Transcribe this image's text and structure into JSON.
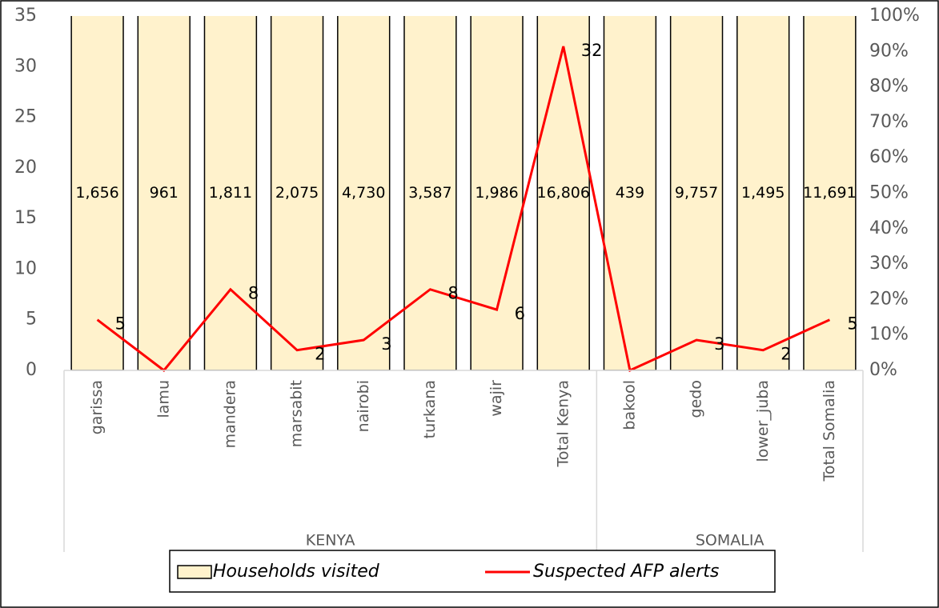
{
  "chart_data": {
    "type": "bar_line",
    "categories": [
      "garissa",
      "lamu",
      "mandera",
      "marsabit",
      "nairobi",
      "turkana",
      "wajir",
      "Total Kenya",
      "bakool",
      "gedo",
      "lower_juba",
      "Total Somalia"
    ],
    "groups": [
      {
        "label": "KENYA",
        "size": 8
      },
      {
        "label": "SOMALIA",
        "size": 4
      }
    ],
    "series": [
      {
        "name": "Households visited",
        "type": "bar",
        "color": "#fff2cc",
        "values": [
          1656,
          961,
          1811,
          2075,
          4730,
          3587,
          1986,
          16806,
          439,
          9757,
          1495,
          11691
        ],
        "value_labels": [
          "1,656",
          "961",
          "1,811",
          "2,075",
          "4,730",
          "3,587",
          "1,986",
          "16,806",
          "439",
          "9,757",
          "1,495",
          "11,691"
        ]
      },
      {
        "name": "Suspected AFP alerts",
        "type": "line",
        "color": "#ff0000",
        "values": [
          5,
          0,
          8,
          2,
          3,
          8,
          6,
          32,
          0,
          3,
          2,
          5
        ],
        "value_labels": [
          "5",
          null,
          "8",
          "2",
          "3",
          "8",
          "6",
          "32",
          null,
          "3",
          "2",
          "5"
        ]
      }
    ],
    "ylim": [
      0,
      35
    ],
    "yticks": [
      0,
      5,
      10,
      15,
      20,
      25,
      30,
      35
    ],
    "y2lim": [
      0,
      100
    ],
    "y2ticks": [
      {
        "value": 0,
        "label": "0%"
      },
      {
        "value": 10,
        "label": "10%"
      },
      {
        "value": 20,
        "label": "20%"
      },
      {
        "value": 30,
        "label": "30%"
      },
      {
        "value": 40,
        "label": "40%"
      },
      {
        "value": 50,
        "label": "50%"
      },
      {
        "value": 60,
        "label": "60%"
      },
      {
        "value": 70,
        "label": "70%"
      },
      {
        "value": 80,
        "label": "80%"
      },
      {
        "value": 90,
        "label": "90%"
      },
      {
        "value": 100,
        "label": "100%"
      }
    ],
    "legend": "bottom"
  }
}
